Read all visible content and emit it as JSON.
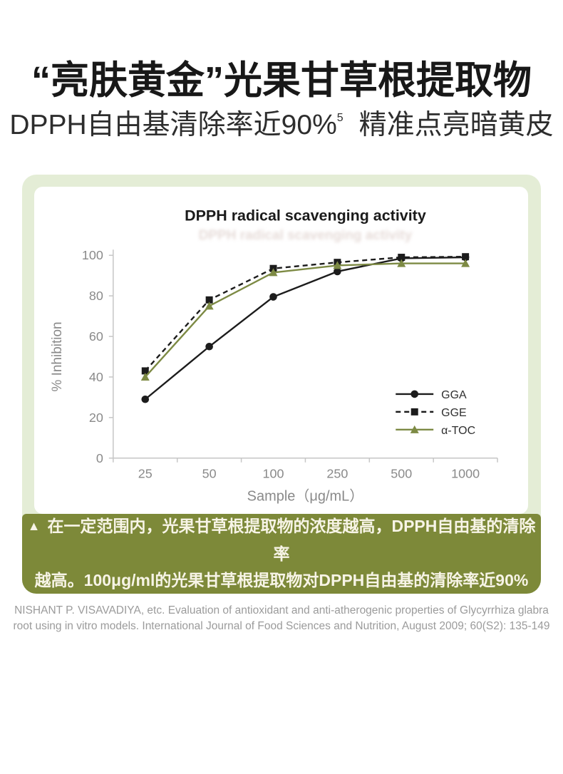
{
  "header": {
    "title": "“亮肤黄金”光果甘草根提取物",
    "subtitle_main": "DPPH自由基清除率近90%",
    "subtitle_footnote": "5",
    "subtitle_tail": "精准点亮暗黄皮"
  },
  "chart_data": {
    "type": "line",
    "title": "DPPH radical scavenging activity",
    "categories": [
      "25",
      "50",
      "100",
      "250",
      "500",
      "1000"
    ],
    "series": [
      {
        "name": "GGA",
        "values": [
          29,
          55,
          79.5,
          92,
          98.5,
          99
        ],
        "color": "#1c1c1c",
        "marker": "circle",
        "dash": "solid"
      },
      {
        "name": "GGE",
        "values": [
          43,
          78,
          93.5,
          96.5,
          99,
          99.3
        ],
        "color": "#1c1c1c",
        "marker": "square",
        "dash": "dashed"
      },
      {
        "name": "α-TOC",
        "values": [
          40,
          75,
          91.5,
          95,
          96,
          96
        ],
        "color": "#7d8a44",
        "marker": "triangle",
        "dash": "solid"
      }
    ],
    "xlabel": "Sample（μg/mL）",
    "ylabel": "% Inhibition",
    "ylim": [
      0,
      100
    ],
    "ytick_step": 20,
    "grid": false,
    "legend_position": "right-middle"
  },
  "callout": {
    "bullet": "▲",
    "line1": "在一定范围内，光果甘草根提取物的浓度越高，DPPH自由基的清除率",
    "line2": "越高。100μg/ml的光果甘草根提取物对DPPH自由基的清除率近90%"
  },
  "citation": {
    "line1": "NISHANT P. VISAVADIYA, etc. Evaluation of antioxidant and anti-atherogenic properties of Glycyrrhiza glabra",
    "line2": "root using in vitro models. International Journal of Food Sciences and Nutrition, August 2009; 60(S2): 135-149"
  },
  "colors": {
    "panel_bg": "#e4edd6",
    "banner_bg": "#7d8939",
    "banner_text": "#f7f4e6",
    "accent_olive": "#7d8a44",
    "series_black": "#1c1c1c",
    "axis_line": "#c6c6c6",
    "axis_text": "#8a8a8a",
    "legend_text": "#2f2f2f",
    "chart_title": "#1b1b1b",
    "citation_text": "#9b9b9b"
  }
}
